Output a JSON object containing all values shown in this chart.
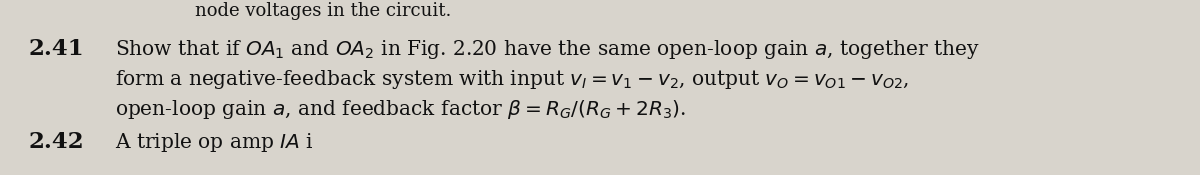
{
  "background_color": "#d8d4cc",
  "top_text": "node voltages in the circuit.",
  "problem_number": "2.41",
  "line1": "Show that if $OA_1$ and $OA_2$ in Fig. 2.20 have the same open-loop gain $a$, together they",
  "line2": "form a negative-feedback system with input $v_I = v_1 - v_2$, output $v_O = v_{O1} - v_{O2}$,",
  "line3": "open-loop gain $a$, and feedback factor $\\beta = R_G/(R_G + 2R_3)$.",
  "bottom_label": "2.42",
  "bottom_text": "A triple op amp IA i...",
  "text_color": "#111111",
  "font_size": 14.5,
  "number_font_size": 16.5
}
